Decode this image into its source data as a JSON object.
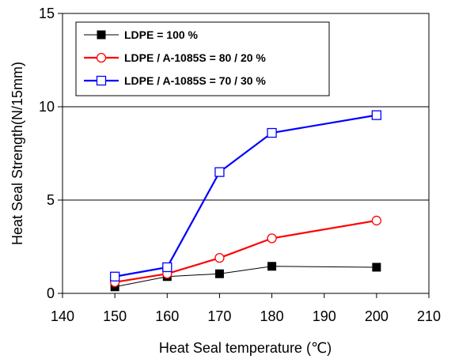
{
  "chart_data": {
    "type": "line",
    "xlabel": "Heat Seal temperature (℃)",
    "ylabel": "Heat Seal Strength(N/15mm)",
    "xlim": [
      140,
      210
    ],
    "ylim": [
      0,
      15
    ],
    "xticks": [
      140,
      150,
      160,
      170,
      180,
      190,
      200,
      210
    ],
    "yticks": [
      0,
      5,
      10,
      15
    ],
    "grid": "horizontal",
    "legend_position": "top-left",
    "series": [
      {
        "name": "LDPE = 100 %",
        "color": "#000000",
        "marker": "square-filled",
        "x": [
          150,
          160,
          170,
          180,
          200
        ],
        "y": [
          0.35,
          0.9,
          1.05,
          1.45,
          1.4
        ]
      },
      {
        "name": "LDPE / A-1085S = 80 / 20 %",
        "color": "#ff0000",
        "marker": "circle-open",
        "x": [
          150,
          160,
          170,
          180,
          200
        ],
        "y": [
          0.6,
          1.05,
          1.9,
          2.95,
          3.9
        ]
      },
      {
        "name": "LDPE / A-1085S = 70 / 30 %",
        "color": "#0000ff",
        "marker": "square-open",
        "x": [
          150,
          160,
          170,
          180,
          200
        ],
        "y": [
          0.9,
          1.4,
          6.5,
          8.6,
          9.55
        ]
      }
    ]
  }
}
